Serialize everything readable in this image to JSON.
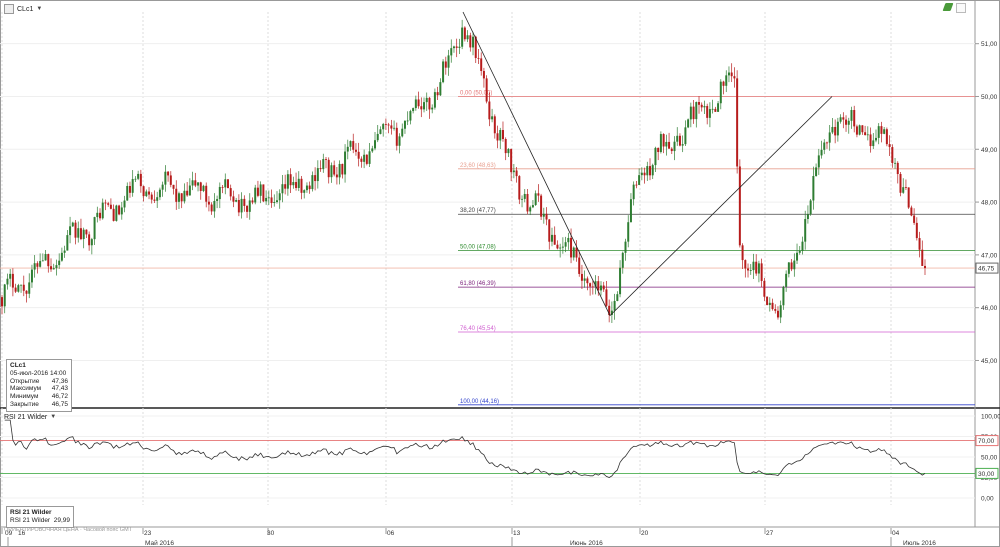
{
  "header": {
    "symbol": "CLc1"
  },
  "price_axis": {
    "ticks": [
      "51,00",
      "50,00",
      "49,00",
      "48,00",
      "47,00",
      "46,00",
      "45,00"
    ],
    "tick_values": [
      51,
      50,
      49,
      48,
      47,
      46,
      45
    ],
    "last_price_label": "46,75",
    "last_price": 46.75
  },
  "rsi_axis": {
    "ticks": [
      "100,00",
      "75,00",
      "50,00",
      "25,00",
      "0,00"
    ],
    "tick_values": [
      100,
      75,
      50,
      25,
      0
    ],
    "overbought_label": "70,00",
    "oversold_label": "30,00",
    "overbought": 70,
    "oversold": 30
  },
  "date_axis": {
    "day_ticks": [
      "09",
      "16",
      "23",
      "30",
      "06",
      "13",
      "20",
      "27",
      "04"
    ],
    "month_labels": [
      "Май 2016",
      "Июнь 2016",
      "Июль 2016"
    ]
  },
  "fibonacci": {
    "levels": [
      {
        "label": "0,00 (50,00)",
        "value": 50.0,
        "color": "#e57373"
      },
      {
        "label": "23,60 (48,63)",
        "value": 48.63,
        "color": "#e8a090"
      },
      {
        "label": "38,20 (47,77)",
        "value": 47.77,
        "color": "#444444"
      },
      {
        "label": "50,00 (47,08)",
        "value": 47.08,
        "color": "#2e8b2e"
      },
      {
        "label": "61,80 (46,39)",
        "value": 46.39,
        "color": "#7b1f7b"
      },
      {
        "label": "76,40 (45,54)",
        "value": 45.54,
        "color": "#d05fd0"
      },
      {
        "label": "100,00 (44,16)",
        "value": 44.16,
        "color": "#3344cc"
      }
    ]
  },
  "info_box": {
    "title": "CLc1",
    "datetime": "05-июл-2016 14:00",
    "rows": [
      {
        "label": "Открытие",
        "value": "47,36"
      },
      {
        "label": "Максимум",
        "value": "47,43"
      },
      {
        "label": "Минимум",
        "value": "46,72"
      },
      {
        "label": "Закрытие",
        "value": "46,75"
      }
    ]
  },
  "rsi_panel": {
    "header": "RSI 21 Wilder",
    "box_title": "RSI 21 Wilder",
    "box_label": "RSI 21 Wilder",
    "box_value": "29,99"
  },
  "notice": "ОРИЕНТИРОВОЧНАЯ ЦЕНА · Часовой пояс GMT",
  "colors": {
    "up": "#2e7d32",
    "down": "#b71c1c",
    "grid": "#dcdcdc",
    "rsi_line": "#333333",
    "ob": "#e57373",
    "os": "#4caf50"
  },
  "chart_data": {
    "type": "candlestick",
    "title": "CLc1",
    "ylim": [
      44.1,
      51.6
    ],
    "x_dates": [
      "09",
      "16",
      "23",
      "30",
      "06",
      "13",
      "20",
      "27",
      "04"
    ],
    "close_path_key_points": [
      {
        "x": "09",
        "y": 46.2
      },
      {
        "x": "16",
        "y": 48.3
      },
      {
        "x": "23",
        "y": 48.0
      },
      {
        "x": "30",
        "y": 49.2
      },
      {
        "x": "06",
        "y": 50.2
      },
      {
        "x": "Jun 08",
        "y": 51.45
      },
      {
        "x": "13",
        "y": 48.5
      },
      {
        "x": "Jun 17",
        "y": 45.9
      },
      {
        "x": "20",
        "y": 48.6
      },
      {
        "x": "Jun 23",
        "y": 50.3
      },
      {
        "x": "Jun 24",
        "y": 47.1
      },
      {
        "x": "Jun 27",
        "y": 45.9
      },
      {
        "x": "Jun 30",
        "y": 49.6
      },
      {
        "x": "04",
        "y": 49.1
      },
      {
        "x": "Jul 05",
        "y": 46.75
      }
    ],
    "trendlines": [
      {
        "from": {
          "x": "Jun 08",
          "y": 51.6
        },
        "to": {
          "x": "Jun 17",
          "y": 45.85
        }
      },
      {
        "from": {
          "x": "Jun 17",
          "y": 45.85
        },
        "to": {
          "x": "Jun 30",
          "y": 50.0
        }
      }
    ],
    "rsi": {
      "name": "RSI 21 Wilder",
      "last": 29.99,
      "ylim": [
        0,
        100
      ],
      "bands": [
        30,
        70
      ]
    }
  }
}
